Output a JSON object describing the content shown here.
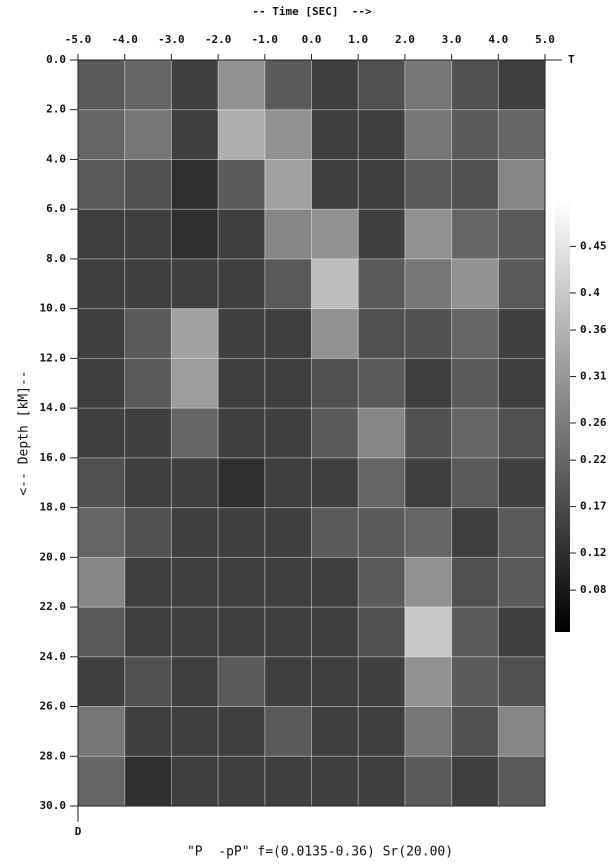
{
  "chart_data": {
    "type": "heatmap",
    "title": "-- Time [SEC]  -->",
    "y_label": "<-- Depth [kM]--",
    "x_axis_end_label": "T",
    "y_axis_end_label": "D",
    "caption": "\"P  -pP\" f=(0.0135-0.36) Sr(20.00)",
    "xlim": [
      -5,
      5
    ],
    "ylim": [
      0,
      30
    ],
    "y_inverted": true,
    "xticks": [
      {
        "value": -5,
        "label": "-5.0"
      },
      {
        "value": -4,
        "label": "-4.0"
      },
      {
        "value": -3,
        "label": "-3.0"
      },
      {
        "value": -2,
        "label": "-2.0"
      },
      {
        "value": -1,
        "label": "-1.0"
      },
      {
        "value": 0,
        "label": "0.0"
      },
      {
        "value": 1,
        "label": "1.0"
      },
      {
        "value": 2,
        "label": "2.0"
      },
      {
        "value": 3,
        "label": "3.0"
      },
      {
        "value": 4,
        "label": "4.0"
      },
      {
        "value": 5,
        "label": "5.0"
      }
    ],
    "yticks": [
      {
        "value": 0,
        "label": "0.0"
      },
      {
        "value": 2,
        "label": "2.0"
      },
      {
        "value": 4,
        "label": "4.0"
      },
      {
        "value": 6,
        "label": "6.0"
      },
      {
        "value": 8,
        "label": "8.0"
      },
      {
        "value": 10,
        "label": "10.0"
      },
      {
        "value": 12,
        "label": "12.0"
      },
      {
        "value": 14,
        "label": "14.0"
      },
      {
        "value": 16,
        "label": "16.0"
      },
      {
        "value": 18,
        "label": "18.0"
      },
      {
        "value": 20,
        "label": "20.0"
      },
      {
        "value": 22,
        "label": "22.0"
      },
      {
        "value": 24,
        "label": "24.0"
      },
      {
        "value": 26,
        "label": "26.0"
      },
      {
        "value": 28,
        "label": "28.0"
      },
      {
        "value": 30,
        "label": "30.0"
      }
    ],
    "grid": true,
    "colormap": "gray",
    "clim": [
      0.035,
      0.5
    ],
    "cticks": [
      0.08,
      0.12,
      0.17,
      0.22,
      0.26,
      0.31,
      0.36,
      0.4,
      0.45
    ],
    "z": [
      [
        0.2,
        0.22,
        0.15,
        0.3,
        0.2,
        0.15,
        0.18,
        0.25,
        0.18,
        0.15
      ],
      [
        0.22,
        0.25,
        0.15,
        0.35,
        0.3,
        0.15,
        0.15,
        0.25,
        0.2,
        0.22
      ],
      [
        0.2,
        0.18,
        0.12,
        0.2,
        0.33,
        0.15,
        0.15,
        0.2,
        0.18,
        0.28
      ],
      [
        0.15,
        0.15,
        0.12,
        0.15,
        0.28,
        0.3,
        0.15,
        0.3,
        0.22,
        0.2
      ],
      [
        0.15,
        0.15,
        0.15,
        0.15,
        0.2,
        0.38,
        0.2,
        0.25,
        0.3,
        0.2
      ],
      [
        0.15,
        0.2,
        0.33,
        0.15,
        0.15,
        0.3,
        0.18,
        0.18,
        0.22,
        0.15
      ],
      [
        0.15,
        0.2,
        0.32,
        0.15,
        0.15,
        0.18,
        0.2,
        0.15,
        0.2,
        0.15
      ],
      [
        0.15,
        0.15,
        0.22,
        0.15,
        0.15,
        0.2,
        0.28,
        0.18,
        0.22,
        0.18
      ],
      [
        0.18,
        0.15,
        0.15,
        0.12,
        0.15,
        0.15,
        0.22,
        0.15,
        0.2,
        0.15
      ],
      [
        0.22,
        0.18,
        0.15,
        0.15,
        0.15,
        0.2,
        0.2,
        0.22,
        0.15,
        0.2
      ],
      [
        0.28,
        0.15,
        0.15,
        0.15,
        0.15,
        0.15,
        0.2,
        0.3,
        0.18,
        0.2
      ],
      [
        0.2,
        0.15,
        0.15,
        0.15,
        0.15,
        0.15,
        0.18,
        0.4,
        0.2,
        0.15
      ],
      [
        0.15,
        0.18,
        0.15,
        0.2,
        0.15,
        0.15,
        0.15,
        0.3,
        0.2,
        0.18
      ],
      [
        0.25,
        0.15,
        0.15,
        0.15,
        0.2,
        0.15,
        0.15,
        0.25,
        0.18,
        0.28
      ],
      [
        0.22,
        0.12,
        0.15,
        0.15,
        0.15,
        0.15,
        0.15,
        0.2,
        0.15,
        0.2
      ]
    ]
  }
}
